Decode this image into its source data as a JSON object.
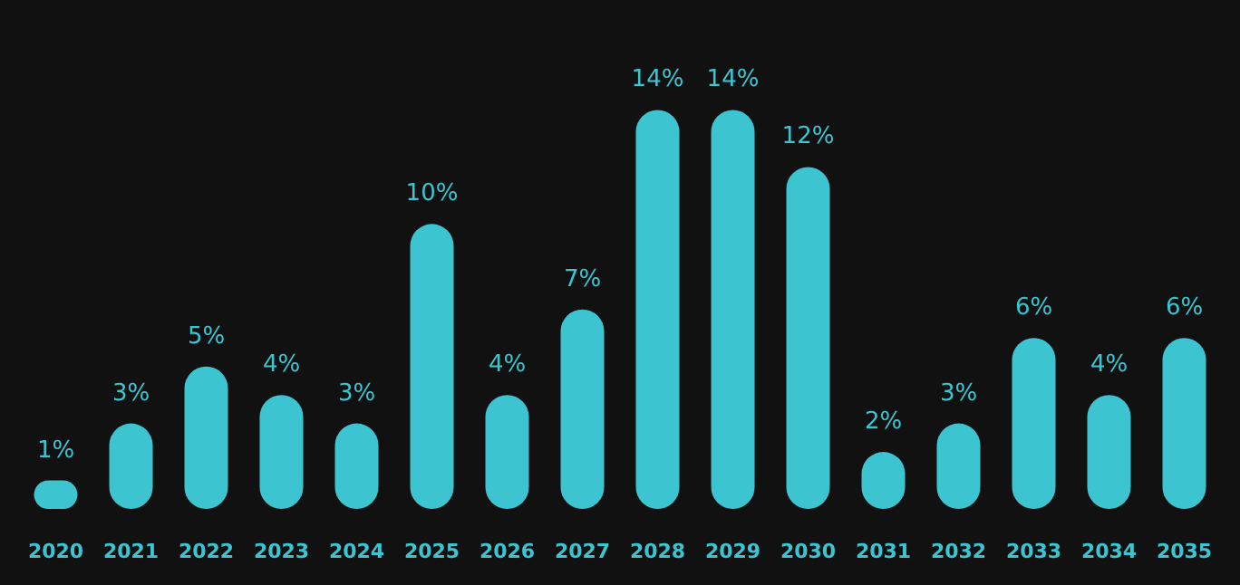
{
  "chart_data": {
    "type": "bar",
    "categories": [
      "2020",
      "2021",
      "2022",
      "2023",
      "2024",
      "2025",
      "2026",
      "2027",
      "2028",
      "2029",
      "2030",
      "2031",
      "2032",
      "2033",
      "2034",
      "2035"
    ],
    "values": [
      1,
      3,
      5,
      4,
      3,
      10,
      4,
      7,
      14,
      14,
      12,
      2,
      3,
      6,
      4,
      6
    ],
    "value_labels": [
      "1%",
      "3%",
      "5%",
      "4%",
      "3%",
      "10%",
      "4%",
      "7%",
      "14%",
      "14%",
      "12%",
      "2%",
      "3%",
      "6%",
      "4%",
      "6%"
    ],
    "color": "#3cc5d0"
  }
}
